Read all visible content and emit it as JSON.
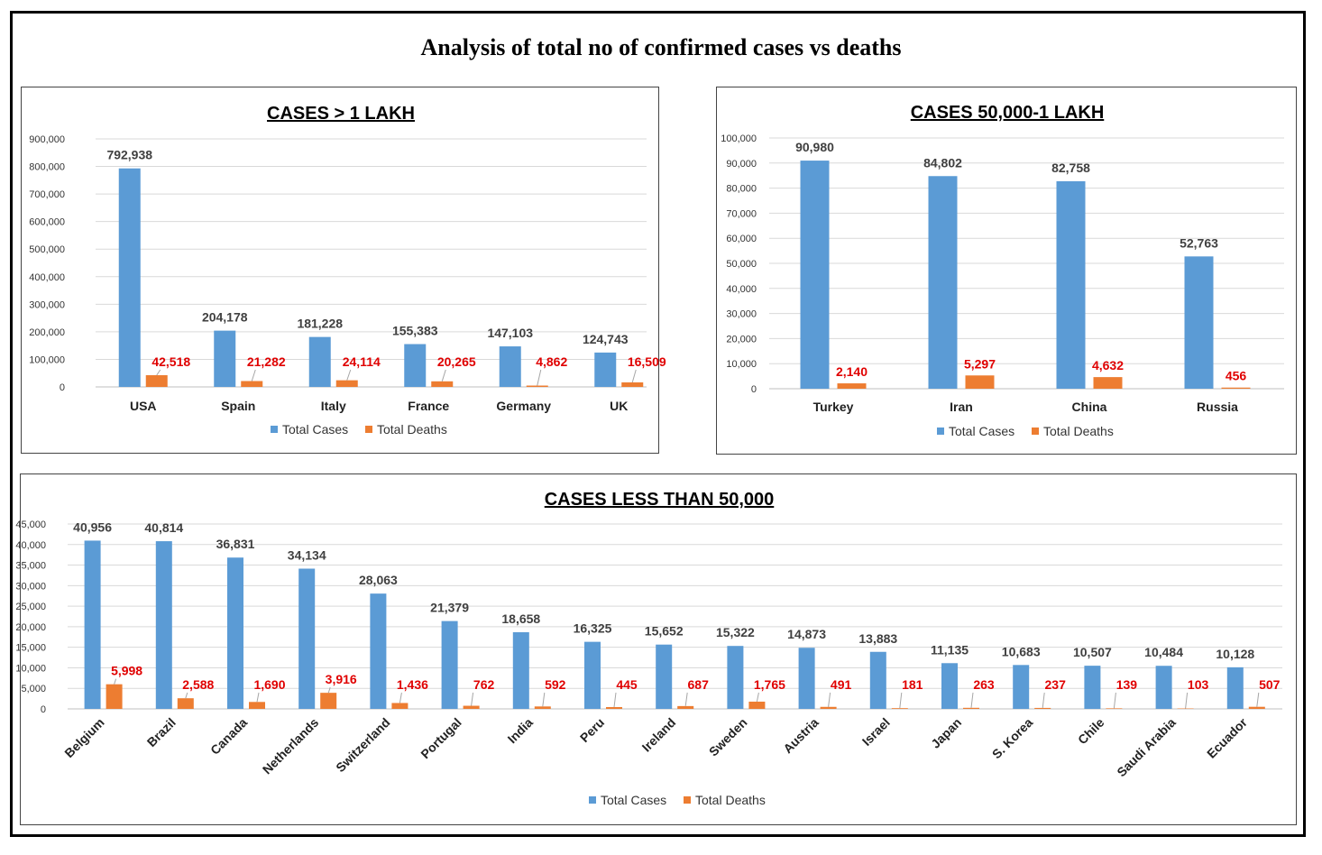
{
  "title": "Analysis of total no of confirmed cases vs deaths",
  "colors": {
    "cases": "#5b9bd5",
    "deaths": "#ed7d31",
    "death_label": "#e00000",
    "case_label": "#404040",
    "grid": "#d9d9d9"
  },
  "legend": {
    "cases": "Total Cases",
    "deaths": "Total Deaths"
  },
  "chart_data": [
    {
      "type": "bar",
      "title": "CASES > 1 LAKH",
      "categories": [
        "USA",
        "Spain",
        "Italy",
        "France",
        "Germany",
        "UK"
      ],
      "series": [
        {
          "name": "Total Cases",
          "values": [
            792938,
            204178,
            181228,
            155383,
            147103,
            124743
          ]
        },
        {
          "name": "Total Deaths",
          "values": [
            42518,
            21282,
            24114,
            20265,
            4862,
            16509
          ]
        }
      ],
      "ylim": [
        0,
        900000
      ],
      "yticks": [
        0,
        100000,
        200000,
        300000,
        400000,
        500000,
        600000,
        700000,
        800000,
        900000
      ],
      "grid": true,
      "legend": "bottom"
    },
    {
      "type": "bar",
      "title": "CASES  50,000-1 LAKH",
      "categories": [
        "Turkey",
        "Iran",
        "China",
        "Russia"
      ],
      "series": [
        {
          "name": "Total Cases",
          "values": [
            90980,
            84802,
            82758,
            52763
          ]
        },
        {
          "name": "Total Deaths",
          "values": [
            2140,
            5297,
            4632,
            456
          ]
        }
      ],
      "ylim": [
        0,
        100000
      ],
      "yticks": [
        0,
        10000,
        20000,
        30000,
        40000,
        50000,
        60000,
        70000,
        80000,
        90000,
        100000
      ],
      "grid": true,
      "legend": "bottom"
    },
    {
      "type": "bar",
      "title": "CASES  LESS THAN 50,000",
      "categories": [
        "Belgium",
        "Brazil",
        "Canada",
        "Netherlands",
        "Switzerland",
        "Portugal",
        "India",
        "Peru",
        "Ireland",
        "Sweden",
        "Austria",
        "Israel",
        "Japan",
        "S. Korea",
        "Chile",
        "Saudi Arabia",
        "Ecuador"
      ],
      "series": [
        {
          "name": "Total Cases",
          "values": [
            40956,
            40814,
            36831,
            34134,
            28063,
            21379,
            18658,
            16325,
            15652,
            15322,
            14873,
            13883,
            11135,
            10683,
            10507,
            10484,
            10128
          ]
        },
        {
          "name": "Total Deaths",
          "values": [
            5998,
            2588,
            1690,
            3916,
            1436,
            762,
            592,
            445,
            687,
            1765,
            491,
            181,
            263,
            237,
            139,
            103,
            507
          ]
        }
      ],
      "ylim": [
        0,
        45000
      ],
      "yticks": [
        0,
        5000,
        10000,
        15000,
        20000,
        25000,
        30000,
        35000,
        40000,
        45000
      ],
      "grid": true,
      "legend": "bottom"
    }
  ]
}
